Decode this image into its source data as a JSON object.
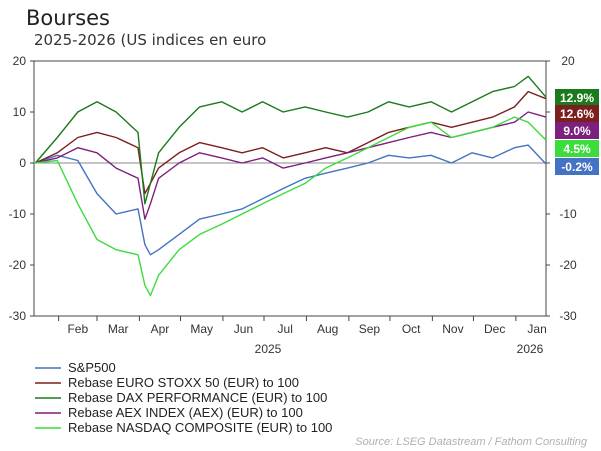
{
  "title": "Bourses",
  "subtitle": "2025-2026 (US indices en euro",
  "source": "Source: LSEG Datastream / Fathom Consulting",
  "chart_data": {
    "type": "line",
    "ylim": [
      -30,
      20
    ],
    "yticks": [
      -30,
      -20,
      -10,
      0,
      10,
      20
    ],
    "month_labels": [
      "Feb",
      "Mar",
      "Apr",
      "May",
      "Jun",
      "Jul",
      "Aug",
      "Sep",
      "Oct",
      "Nov",
      "Dec",
      "Jan"
    ],
    "year_labels": [
      "2025",
      "2026"
    ],
    "x_start": "2025-01-14",
    "x_end": "2026-01-23",
    "grid": false,
    "legend_position": "bottom",
    "x": [
      "2025-01-15",
      "2025-01-31",
      "2025-02-15",
      "2025-03-01",
      "2025-03-15",
      "2025-03-31",
      "2025-04-05",
      "2025-04-09",
      "2025-04-15",
      "2025-04-30",
      "2025-05-15",
      "2025-05-31",
      "2025-06-15",
      "2025-06-30",
      "2025-07-15",
      "2025-07-31",
      "2025-08-15",
      "2025-08-31",
      "2025-09-15",
      "2025-09-30",
      "2025-10-15",
      "2025-10-31",
      "2025-11-15",
      "2025-11-30",
      "2025-12-15",
      "2025-12-31",
      "2026-01-10",
      "2026-01-23"
    ],
    "series": [
      {
        "name": "S&P500",
        "color": "#4472c4",
        "label": "-0.2%",
        "last": -0.2,
        "values": [
          0,
          1.5,
          0.5,
          -6,
          -10,
          -9,
          -16,
          -18,
          -17,
          -14,
          -11,
          -10,
          -9,
          -7,
          -5,
          -3,
          -2,
          -1,
          0,
          1.5,
          1,
          1.5,
          0,
          2,
          1,
          3,
          3.5,
          -0.2
        ]
      },
      {
        "name": "Rebase EURO STOXX 50 (EUR) to 100",
        "color": "#7b1f1f",
        "label": "12.6%",
        "last": 12.6,
        "values": [
          0,
          2,
          5,
          6,
          5,
          3,
          -6,
          -4,
          -1,
          2,
          4,
          3,
          2,
          3,
          1,
          2,
          3,
          2,
          4,
          6,
          7,
          8,
          7,
          8,
          9,
          11,
          14,
          12.6
        ]
      },
      {
        "name": "Rebase DAX PERFORMANCE (EUR) to 100",
        "color": "#1b7a1b",
        "label": "12.9%",
        "last": 12.9,
        "values": [
          0,
          5,
          10,
          12,
          10,
          6,
          -8,
          -4,
          2,
          7,
          11,
          12,
          10,
          12,
          10,
          11,
          10,
          9,
          10,
          12,
          11,
          12,
          10,
          12,
          14,
          15,
          17,
          12.9
        ]
      },
      {
        "name": "Rebase AEX INDEX (AEX) (EUR) to 100",
        "color": "#7d1f7d",
        "label": "9.0%",
        "last": 9.0,
        "values": [
          0,
          1,
          3,
          2,
          -1,
          -3,
          -11,
          -8,
          -3,
          0,
          2,
          1,
          0,
          1,
          -1,
          0,
          1,
          2,
          3,
          4,
          5,
          6,
          5,
          6,
          7,
          8,
          10,
          9.0
        ]
      },
      {
        "name": "Rebase NASDAQ COMPOSITE (EUR) to 100",
        "color": "#3ddc3d",
        "label": "4.5%",
        "last": 4.5,
        "values": [
          0,
          0.5,
          -8,
          -15,
          -17,
          -18,
          -24,
          -26,
          -22,
          -17,
          -14,
          -12,
          -10,
          -8,
          -6,
          -4,
          -1,
          1,
          3,
          5,
          7,
          8,
          5,
          6,
          7,
          9,
          8,
          4.5
        ]
      }
    ]
  }
}
